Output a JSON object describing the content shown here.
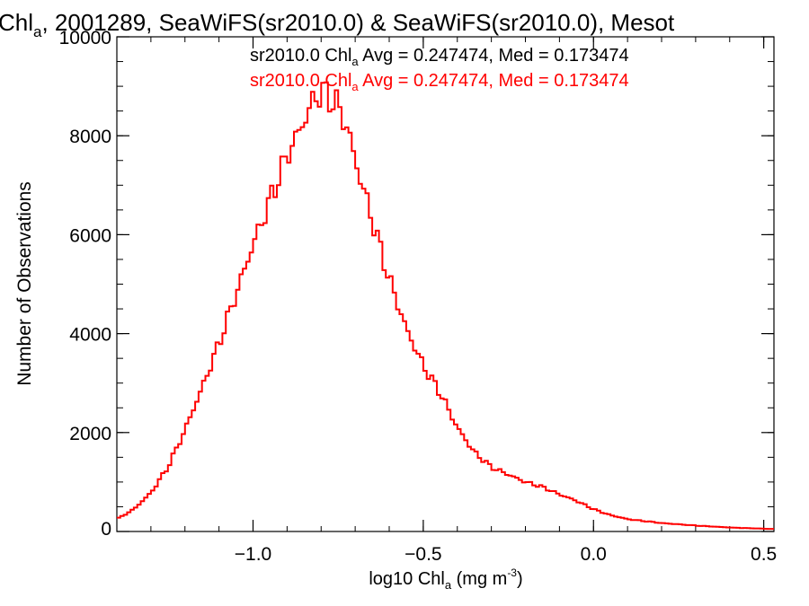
{
  "chart_data": {
    "type": "line",
    "title_prefix": "Chl",
    "title_sub": "a",
    "title_rest": ", 2001289, SeaWiFS(sr2010.0) & SeaWiFS(sr2010.0), Mesot",
    "xlabel_prefix": "log10 Chl",
    "xlabel_sub": "a",
    "xlabel_units": " (mg m",
    "xlabel_sup": "-3",
    "xlabel_close": ")",
    "ylabel": "Number of Observations",
    "xlim": [
      -1.4,
      0.53
    ],
    "ylim": [
      0,
      10000
    ],
    "x_ticks": [
      -1.0,
      -0.5,
      0.0,
      0.5
    ],
    "x_tick_labels": [
      "−1.0",
      "−0.5",
      "0.0",
      "0.5"
    ],
    "y_ticks": [
      0,
      2000,
      4000,
      6000,
      8000,
      10000
    ],
    "y_tick_labels": [
      "0",
      "2000",
      "4000",
      "6000",
      "8000",
      "10000"
    ],
    "x_minor_step": 0.1,
    "y_minor_step": 500,
    "grid": false,
    "colors": {
      "primary": "#000000",
      "comparison": "#ff0000"
    },
    "stats": [
      {
        "label_prefix": "sr2010.0 Chl",
        "label_sub": "a",
        "label_rest": " Avg = 0.247474, Med = 0.173474",
        "color": "#000000"
      },
      {
        "label_prefix": "sr2010.0 Chl",
        "label_sub": "a",
        "label_rest": " Avg = 0.247474, Med = 0.173474",
        "color": "#ff0000"
      }
    ],
    "series": [
      {
        "color": "#ff0000",
        "bin_width": 0.01,
        "x": [
          -1.4,
          -1.35,
          -1.3,
          -1.25,
          -1.2,
          -1.15,
          -1.1,
          -1.05,
          -1.0,
          -0.95,
          -0.9,
          -0.85,
          -0.82,
          -0.8,
          -0.78,
          -0.75,
          -0.72,
          -0.7,
          -0.65,
          -0.6,
          -0.55,
          -0.5,
          -0.45,
          -0.4,
          -0.35,
          -0.3,
          -0.25,
          -0.2,
          -0.15,
          -0.1,
          -0.05,
          0.0,
          0.05,
          0.1,
          0.2,
          0.3,
          0.4,
          0.53
        ],
        "values": [
          250,
          450,
          780,
          1300,
          2050,
          2900,
          3800,
          4800,
          5800,
          6700,
          7600,
          8300,
          8750,
          8900,
          8800,
          8600,
          8100,
          7500,
          6300,
          5100,
          4100,
          3350,
          2800,
          2100,
          1600,
          1300,
          1150,
          1000,
          900,
          750,
          620,
          450,
          330,
          250,
          170,
          120,
          80,
          50
        ]
      }
    ]
  }
}
